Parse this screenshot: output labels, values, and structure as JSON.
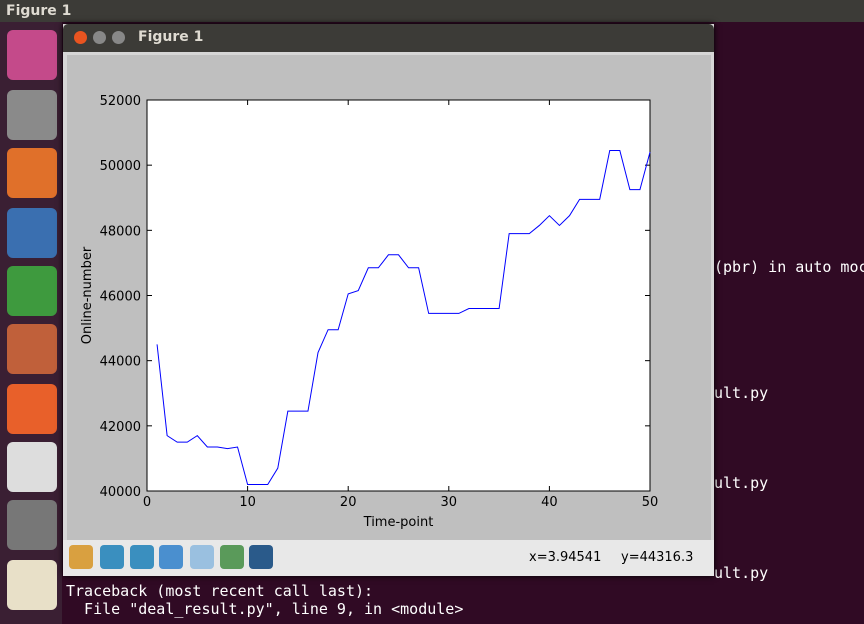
{
  "top_bar": {
    "title": "Figure 1"
  },
  "window": {
    "title": "Figure 1",
    "status": {
      "x": "x=3.94541",
      "y": "y=44316.3"
    }
  },
  "terminal": {
    "lines": [
      "(pbr) in auto moc",
      "ult.py",
      "ult.py",
      "ult.py",
      "Traceback (most recent call last):",
      "  File \"deal_result.py\", line 9, in <module>"
    ]
  },
  "chart_data": {
    "type": "line",
    "x_label": "Time-point",
    "y_label": "Online-number",
    "x": [
      1,
      2,
      3,
      4,
      5,
      6,
      7,
      8,
      9,
      10,
      11,
      12,
      13,
      14,
      15,
      16,
      17,
      18,
      19,
      20,
      21,
      22,
      23,
      24,
      25,
      26,
      27,
      28,
      29,
      30,
      31,
      32,
      33,
      34,
      35,
      36,
      37,
      38,
      39,
      40,
      41,
      42,
      43,
      44,
      45,
      46,
      47,
      48,
      49,
      50
    ],
    "series": [
      {
        "color": "#0000ff",
        "values": [
          44500,
          41700,
          41500,
          41500,
          41700,
          41350,
          41350,
          41300,
          41350,
          40200,
          40200,
          40200,
          40700,
          42450,
          42450,
          42450,
          44250,
          44950,
          44950,
          46050,
          46150,
          46850,
          46850,
          47250,
          47250,
          46850,
          46850,
          45450,
          45450,
          45450,
          45450,
          45600,
          45600,
          45600,
          45600,
          47900,
          47900,
          47900,
          48150,
          48450,
          48150,
          48450,
          48950,
          48950,
          48950,
          50450,
          50450,
          49250,
          49250,
          50400
        ]
      }
    ],
    "xlim": [
      0,
      50
    ],
    "xticks": [
      0,
      10,
      20,
      30,
      40,
      50
    ],
    "ylim": [
      40000,
      52000
    ],
    "yticks": [
      40000,
      42000,
      44000,
      46000,
      48000,
      50000,
      52000
    ],
    "grid": false
  }
}
